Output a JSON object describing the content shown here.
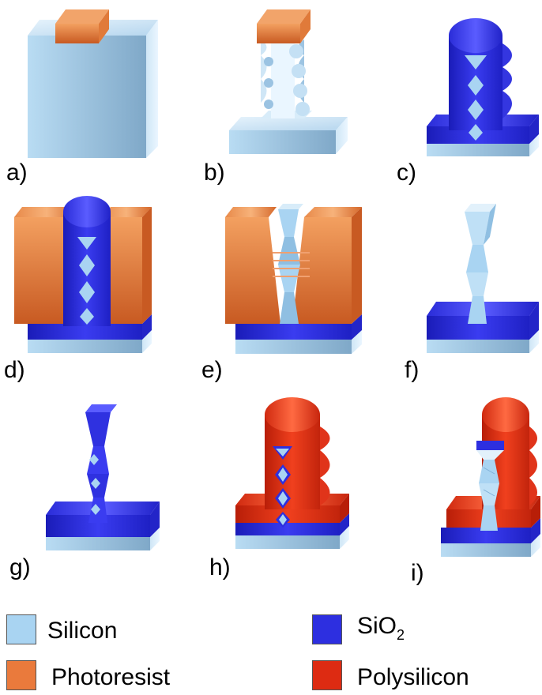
{
  "panels": [
    {
      "id": "a",
      "label": "a)"
    },
    {
      "id": "b",
      "label": "b)"
    },
    {
      "id": "c",
      "label": "c)"
    },
    {
      "id": "d",
      "label": "d)"
    },
    {
      "id": "e",
      "label": "e)"
    },
    {
      "id": "f",
      "label": "f)"
    },
    {
      "id": "g",
      "label": "g)"
    },
    {
      "id": "h",
      "label": "h)"
    },
    {
      "id": "i",
      "label": "i)"
    }
  ],
  "legend": {
    "silicon": {
      "label": "Silicon",
      "color": "#a9d4f2"
    },
    "photoresist": {
      "label": "Photoresist",
      "color": "#ea7a3c"
    },
    "sio2": {
      "label": "SiO",
      "sub": "2",
      "color": "#2d2fe0"
    },
    "polysilicon": {
      "label": "Polysilicon",
      "color": "#dd2b12"
    }
  }
}
